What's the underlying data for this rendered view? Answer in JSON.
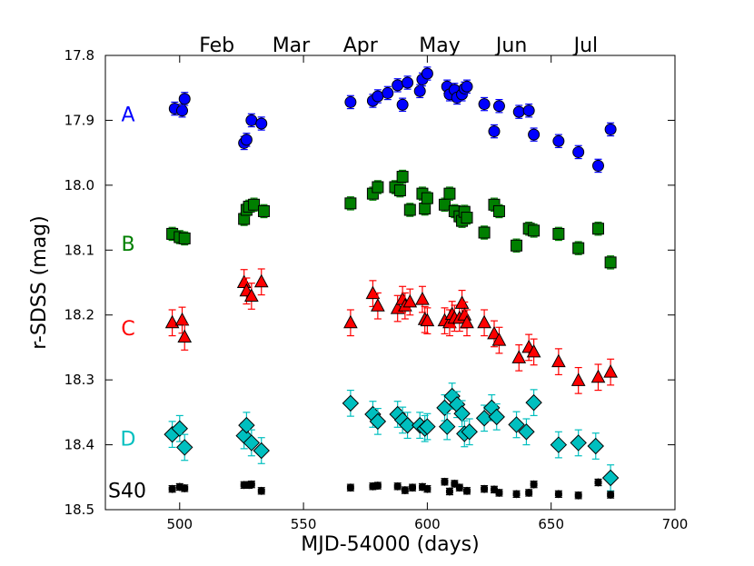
{
  "chart_data": {
    "type": "scatter",
    "title": "",
    "xlabel": "MJD-54000 (days)",
    "ylabel": "r-SDSS (mag)",
    "xlim": [
      470,
      700
    ],
    "ylim": [
      18.5,
      17.8
    ],
    "y_inverted": true,
    "grid": false,
    "xticks": [
      500,
      550,
      600,
      650,
      700
    ],
    "yticks": [
      17.8,
      17.9,
      18.0,
      18.1,
      18.2,
      18.3,
      18.4,
      18.5
    ],
    "xtick_labels": [
      "500",
      "550",
      "600",
      "650",
      "700"
    ],
    "ytick_labels": [
      "17.8",
      "17.9",
      "18.0",
      "18.1",
      "18.2",
      "18.3",
      "18.4",
      "18.5"
    ],
    "top_axis_months": [
      {
        "label": "Feb",
        "x": 515
      },
      {
        "label": "Mar",
        "x": 545
      },
      {
        "label": "Apr",
        "x": 573
      },
      {
        "label": "May",
        "x": 605
      },
      {
        "label": "Jun",
        "x": 634
      },
      {
        "label": "Jul",
        "x": 664
      }
    ],
    "series": [
      {
        "name": "A",
        "label_y": 17.89,
        "marker": "circle",
        "color": "#0000ff",
        "error_color": "#0000ff",
        "error": 0.01,
        "points": [
          [
            498,
            17.882
          ],
          [
            501,
            17.885
          ],
          [
            502,
            17.867
          ],
          [
            526,
            17.935
          ],
          [
            527,
            17.93
          ],
          [
            529,
            17.9
          ],
          [
            533,
            17.905
          ],
          [
            569,
            17.872
          ],
          [
            578,
            17.87
          ],
          [
            580,
            17.863
          ],
          [
            584,
            17.858
          ],
          [
            588,
            17.846
          ],
          [
            590,
            17.876
          ],
          [
            592,
            17.842
          ],
          [
            597,
            17.855
          ],
          [
            598,
            17.837
          ],
          [
            600,
            17.828
          ],
          [
            608,
            17.848
          ],
          [
            609,
            17.86
          ],
          [
            611,
            17.853
          ],
          [
            612,
            17.865
          ],
          [
            614,
            17.86
          ],
          [
            615,
            17.851
          ],
          [
            616,
            17.848
          ],
          [
            623,
            17.875
          ],
          [
            627,
            17.917
          ],
          [
            629,
            17.878
          ],
          [
            637,
            17.887
          ],
          [
            641,
            17.885
          ],
          [
            643,
            17.922
          ],
          [
            653,
            17.932
          ],
          [
            661,
            17.949
          ],
          [
            669,
            17.97
          ],
          [
            674,
            17.914
          ]
        ]
      },
      {
        "name": "B",
        "label_y": 18.09,
        "marker": "square",
        "color": "#007f00",
        "error_color": "#007f00",
        "error": 0.01,
        "points": [
          [
            497,
            18.075
          ],
          [
            500,
            18.08
          ],
          [
            502,
            18.082
          ],
          [
            526,
            18.052
          ],
          [
            527,
            18.038
          ],
          [
            528,
            18.033
          ],
          [
            530,
            18.03
          ],
          [
            534,
            18.04
          ],
          [
            569,
            18.028
          ],
          [
            578,
            18.013
          ],
          [
            580,
            18.003
          ],
          [
            587,
            18.003
          ],
          [
            589,
            18.008
          ],
          [
            590,
            17.987
          ],
          [
            593,
            18.038
          ],
          [
            598,
            18.013
          ],
          [
            599,
            18.036
          ],
          [
            600,
            18.02
          ],
          [
            607,
            18.03
          ],
          [
            609,
            18.013
          ],
          [
            611,
            18.04
          ],
          [
            613,
            18.048
          ],
          [
            614,
            18.055
          ],
          [
            615,
            18.041
          ],
          [
            616,
            18.05
          ],
          [
            623,
            18.073
          ],
          [
            627,
            18.03
          ],
          [
            629,
            18.04
          ],
          [
            636,
            18.093
          ],
          [
            641,
            18.067
          ],
          [
            643,
            18.07
          ],
          [
            653,
            18.075
          ],
          [
            661,
            18.097
          ],
          [
            669,
            18.067
          ],
          [
            674,
            18.119
          ]
        ]
      },
      {
        "name": "C",
        "label_y": 18.22,
        "marker": "triangle",
        "color": "#ff0000",
        "error_color": "#ff0000",
        "error": 0.02,
        "points": [
          [
            497,
            18.212
          ],
          [
            501,
            18.208
          ],
          [
            502,
            18.234
          ],
          [
            526,
            18.15
          ],
          [
            527,
            18.163
          ],
          [
            529,
            18.171
          ],
          [
            533,
            18.149
          ],
          [
            569,
            18.212
          ],
          [
            578,
            18.167
          ],
          [
            580,
            18.186
          ],
          [
            588,
            18.19
          ],
          [
            590,
            18.176
          ],
          [
            591,
            18.186
          ],
          [
            593,
            18.18
          ],
          [
            598,
            18.176
          ],
          [
            599,
            18.207
          ],
          [
            600,
            18.209
          ],
          [
            607,
            18.209
          ],
          [
            609,
            18.212
          ],
          [
            610,
            18.199
          ],
          [
            611,
            18.205
          ],
          [
            613,
            18.205
          ],
          [
            614,
            18.182
          ],
          [
            615,
            18.2
          ],
          [
            616,
            18.212
          ],
          [
            623,
            18.212
          ],
          [
            627,
            18.229
          ],
          [
            629,
            18.239
          ],
          [
            637,
            18.266
          ],
          [
            641,
            18.25
          ],
          [
            643,
            18.257
          ],
          [
            653,
            18.272
          ],
          [
            661,
            18.301
          ],
          [
            669,
            18.296
          ],
          [
            674,
            18.288
          ]
        ]
      },
      {
        "name": "D",
        "label_y": 18.39,
        "marker": "diamond",
        "color": "#00bfbf",
        "error_color": "#00bfbf",
        "error": 0.02,
        "points": [
          [
            497,
            18.384
          ],
          [
            500,
            18.375
          ],
          [
            502,
            18.404
          ],
          [
            526,
            18.386
          ],
          [
            527,
            18.37
          ],
          [
            529,
            18.397
          ],
          [
            533,
            18.409
          ],
          [
            569,
            18.336
          ],
          [
            578,
            18.353
          ],
          [
            580,
            18.364
          ],
          [
            588,
            18.353
          ],
          [
            590,
            18.362
          ],
          [
            592,
            18.37
          ],
          [
            597,
            18.37
          ],
          [
            599,
            18.375
          ],
          [
            600,
            18.372
          ],
          [
            607,
            18.343
          ],
          [
            608,
            18.372
          ],
          [
            610,
            18.325
          ],
          [
            612,
            18.338
          ],
          [
            614,
            18.352
          ],
          [
            615,
            18.383
          ],
          [
            617,
            18.38
          ],
          [
            623,
            18.359
          ],
          [
            626,
            18.343
          ],
          [
            628,
            18.357
          ],
          [
            636,
            18.369
          ],
          [
            640,
            18.38
          ],
          [
            643,
            18.335
          ],
          [
            653,
            18.4
          ],
          [
            661,
            18.397
          ],
          [
            668,
            18.402
          ],
          [
            674,
            18.451
          ]
        ]
      },
      {
        "name": "S40",
        "label_y": 18.47,
        "marker": "hexagon",
        "color": "#000000",
        "error_color": "#000000",
        "error": 0.005,
        "points": [
          [
            497,
            18.468
          ],
          [
            500,
            18.465
          ],
          [
            502,
            18.467
          ],
          [
            526,
            18.462
          ],
          [
            528,
            18.462
          ],
          [
            529,
            18.461
          ],
          [
            533,
            18.471
          ],
          [
            569,
            18.466
          ],
          [
            578,
            18.464
          ],
          [
            580,
            18.463
          ],
          [
            588,
            18.464
          ],
          [
            591,
            18.47
          ],
          [
            594,
            18.466
          ],
          [
            598,
            18.465
          ],
          [
            600,
            18.468
          ],
          [
            607,
            18.457
          ],
          [
            609,
            18.472
          ],
          [
            611,
            18.46
          ],
          [
            613,
            18.466
          ],
          [
            616,
            18.471
          ],
          [
            623,
            18.468
          ],
          [
            627,
            18.469
          ],
          [
            629,
            18.474
          ],
          [
            636,
            18.476
          ],
          [
            641,
            18.474
          ],
          [
            643,
            18.461
          ],
          [
            653,
            18.476
          ],
          [
            661,
            18.478
          ],
          [
            669,
            18.458
          ],
          [
            674,
            18.477
          ]
        ]
      }
    ]
  }
}
